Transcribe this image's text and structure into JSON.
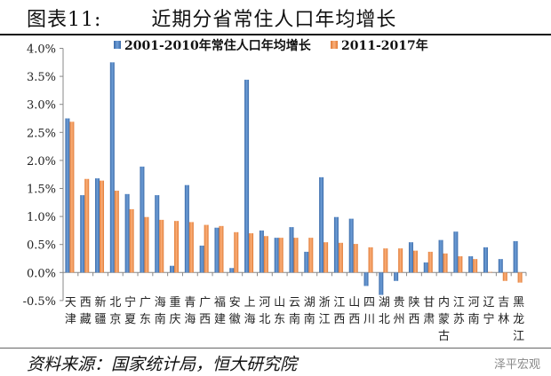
{
  "title": "图表11:       近期分省常住人口年均增长",
  "source": "资料来源：国家统计局，恒大研究院",
  "watermark": "泽平宏观",
  "chart_data": {
    "type": "bar",
    "title": "",
    "xlabel": "",
    "ylabel": "",
    "ylim": [
      -0.5,
      4.0
    ],
    "yticks": [
      "-0.5%",
      "0.0%",
      "0.5%",
      "1.0%",
      "1.5%",
      "2.0%",
      "2.5%",
      "3.0%",
      "3.5%",
      "4.0%"
    ],
    "grid": false,
    "legend_position": "top",
    "categories": [
      "天津",
      "西藏",
      "新疆",
      "北京",
      "宁夏",
      "广东",
      "海南",
      "重庆",
      "青海",
      "广西",
      "福建",
      "安徽",
      "上海",
      "河北",
      "山东",
      "云南",
      "湖南",
      "浙江",
      "江西",
      "山西",
      "四川",
      "湖北",
      "贵州",
      "陕西",
      "甘肃",
      "内蒙古",
      "江苏",
      "河南",
      "辽宁",
      "吉林",
      "黑龙江"
    ],
    "series": [
      {
        "name": "2001-2010年常住人口年均增长",
        "color": "#4f81bd",
        "values": [
          2.75,
          1.38,
          1.68,
          3.75,
          1.4,
          1.89,
          1.38,
          0.12,
          1.56,
          0.48,
          0.8,
          0.08,
          3.44,
          0.75,
          0.62,
          0.81,
          0.37,
          1.7,
          0.99,
          0.96,
          -0.24,
          -0.4,
          -0.15,
          0.54,
          0.18,
          0.58,
          0.73,
          0.29,
          0.45,
          0.24,
          0.56
        ]
      },
      {
        "name": "2011-2017年",
        "color": "#f79646",
        "values": [
          2.69,
          1.67,
          1.64,
          1.46,
          1.13,
          0.99,
          0.94,
          0.92,
          0.9,
          0.85,
          0.83,
          0.72,
          0.7,
          0.65,
          0.62,
          0.62,
          0.62,
          0.54,
          0.53,
          0.51,
          0.45,
          0.43,
          0.43,
          0.39,
          0.37,
          0.34,
          0.29,
          0.24,
          0.01,
          -0.15,
          -0.18
        ]
      }
    ],
    "unit": "%"
  }
}
